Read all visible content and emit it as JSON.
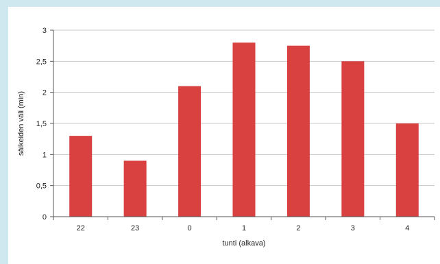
{
  "chart_data": {
    "type": "bar",
    "categories": [
      "22",
      "23",
      "0",
      "1",
      "2",
      "3",
      "4"
    ],
    "values": [
      1.3,
      0.9,
      2.1,
      2.8,
      2.75,
      2.5,
      1.5
    ],
    "xlabel": "tunti (alkava)",
    "ylabel": "säikeiden väli (min)",
    "ylim": [
      0,
      3
    ],
    "yticks": [
      0,
      0.5,
      1,
      1.5,
      2,
      2.5,
      3
    ],
    "ytick_labels": [
      "0",
      "0,5",
      "1",
      "1,5",
      "2",
      "2,5",
      "3"
    ],
    "grid": true,
    "legend": "none",
    "bar_color": "#d94040"
  }
}
